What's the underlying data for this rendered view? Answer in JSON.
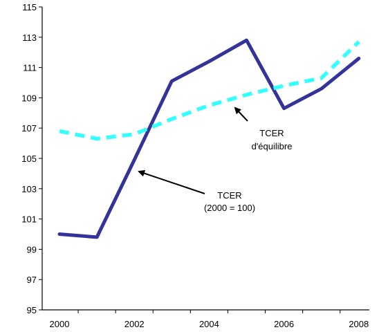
{
  "chart_data": {
    "type": "line",
    "title": "",
    "xlabel": "",
    "ylabel": "",
    "x_ticks": [
      "2000",
      "2002",
      "2004",
      "2006",
      "2008"
    ],
    "y_ticks": [
      "95",
      "97",
      "99",
      "101",
      "103",
      "105",
      "107",
      "109",
      "111",
      "113",
      "115"
    ],
    "xlim": [
      1999.5,
      2008.5
    ],
    "ylim": [
      95,
      115
    ],
    "grid": false,
    "series": [
      {
        "name": "TCER (2000 = 100)",
        "style": "solid",
        "color": "#343399",
        "x": [
          2000,
          2001,
          2002,
          2003,
          2004,
          2005,
          2006,
          2007,
          2008
        ],
        "y": [
          100.0,
          99.8,
          104.9,
          110.1,
          111.4,
          112.8,
          108.3,
          109.6,
          111.6
        ]
      },
      {
        "name": "TCER d'équilibre",
        "style": "dashed",
        "color": "#33ffff",
        "x": [
          2000,
          2001,
          2002,
          2003,
          2004,
          2005,
          2006,
          2007,
          2008
        ],
        "y": [
          106.8,
          106.3,
          106.6,
          107.6,
          108.5,
          109.2,
          109.8,
          110.3,
          112.7
        ]
      }
    ],
    "annotations": [
      {
        "lines": [
          "TCER",
          "d'équilibre"
        ],
        "points_to_series": 1
      },
      {
        "lines": [
          "TCER",
          "(2000 = 100)"
        ],
        "points_to_series": 0
      }
    ]
  }
}
